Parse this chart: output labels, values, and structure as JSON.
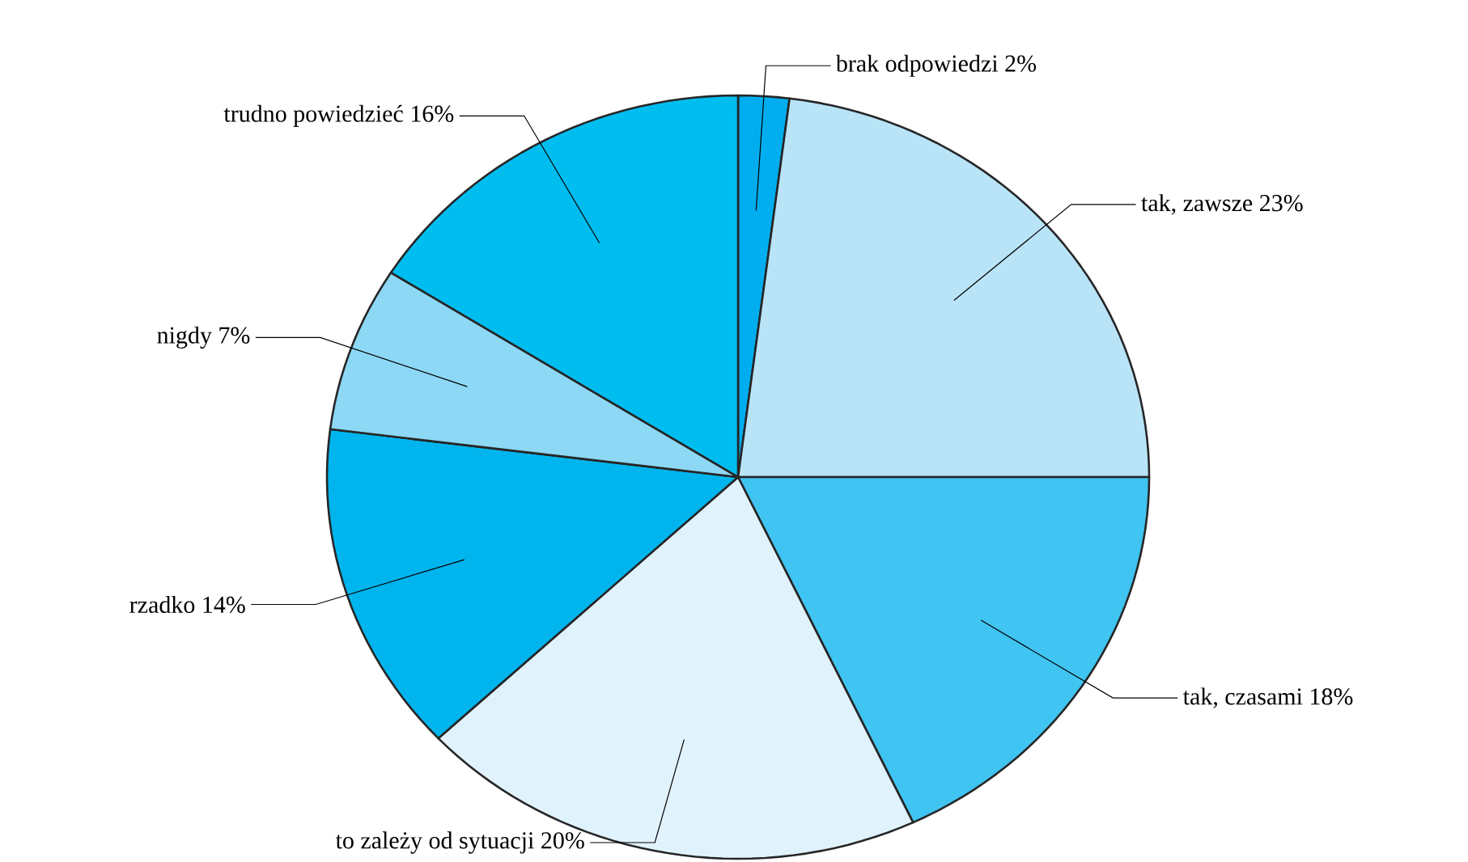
{
  "chart_data": {
    "type": "pie",
    "categories": [
      "brak odpowiedzi",
      "tak, zawsze",
      "tak, czasami",
      "to zależy od sytuacji",
      "rzadko",
      "nigdy",
      "trudno powiedzieć"
    ],
    "values": [
      2,
      23,
      18,
      20,
      14,
      7,
      16
    ],
    "value_labels": [
      "2%",
      "23%",
      "18%",
      "20%",
      "14%",
      "7%",
      "16%"
    ],
    "colors": [
      "#00aeef",
      "#b9e4f8",
      "#40c4f1",
      "#e0f2fc",
      "#00b5ee",
      "#8dd8f5",
      "#00bdf0"
    ]
  }
}
